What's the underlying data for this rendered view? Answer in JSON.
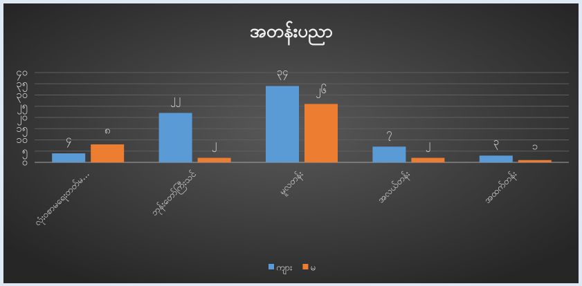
{
  "chart_data": {
    "type": "bar",
    "title": "အတန်းပညာ",
    "categories": [
      "လုံးဝစာမရေးတတ်မ...",
      "ဘုန်းတော်ကြီးသင်",
      "မူလတန်း",
      "အလယ်တန်း",
      "အထက်တန်း"
    ],
    "series": [
      {
        "name": "ကျား",
        "color": "#5b9bd5",
        "values": [
          4,
          22,
          34,
          7,
          3
        ],
        "value_labels": [
          "၄",
          "၂၂",
          "၃၄",
          "၇",
          "၃"
        ]
      },
      {
        "name": "မ",
        "color": "#ed7d31",
        "values": [
          8,
          2,
          26,
          2,
          1
        ],
        "value_labels": [
          "၈",
          "၂",
          "၂၆",
          "၂",
          "၁"
        ]
      }
    ],
    "ylim": [
      0,
      40
    ],
    "yticks": [
      {
        "value": 0,
        "label": "၀"
      },
      {
        "value": 5,
        "label": "၅"
      },
      {
        "value": 10,
        "label": "၁၀"
      },
      {
        "value": 15,
        "label": "၁၅"
      },
      {
        "value": 20,
        "label": "၂၀"
      },
      {
        "value": 25,
        "label": "၂၅"
      },
      {
        "value": 30,
        "label": "၃၀"
      },
      {
        "value": 35,
        "label": "၃၅"
      },
      {
        "value": 40,
        "label": "၄၀"
      }
    ],
    "grid": true,
    "legend": "bottom"
  }
}
